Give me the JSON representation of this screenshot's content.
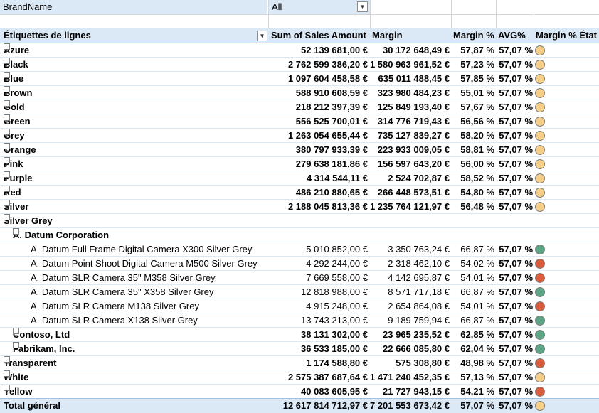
{
  "filter": {
    "field": "BrandName",
    "value": "All"
  },
  "header": {
    "row_labels": "Étiquettes de lignes",
    "sales": "Sum of Sales Amount",
    "margin": "Margin",
    "margin_pct": "Margin %",
    "avg": "AVG%",
    "state": "Margin % État"
  },
  "colors": {
    "yellow": "#f5cf87",
    "green": "#5ea585",
    "red": "#d95c3c",
    "header_bg": "#dbe8f6"
  },
  "rows": [
    {
      "label": "Azure",
      "level": 0,
      "expander": "+",
      "sales": "52 139 681,00 €",
      "margin": "30 172 648,49 €",
      "pct": "57,87 %",
      "avg": "57,07 %",
      "state": "yellow"
    },
    {
      "label": "Black",
      "level": 0,
      "expander": "+",
      "sales": "2 762 599 386,20 €",
      "margin": "1 580 963 961,52 €",
      "pct": "57,23 %",
      "avg": "57,07 %",
      "state": "yellow"
    },
    {
      "label": "Blue",
      "level": 0,
      "expander": "+",
      "sales": "1 097 604 458,58 €",
      "margin": "635 011 488,45 €",
      "pct": "57,85 %",
      "avg": "57,07 %",
      "state": "yellow"
    },
    {
      "label": "Brown",
      "level": 0,
      "expander": "+",
      "sales": "588 910 608,59 €",
      "margin": "323 980 484,23 €",
      "pct": "55,01 %",
      "avg": "57,07 %",
      "state": "yellow"
    },
    {
      "label": "Gold",
      "level": 0,
      "expander": "+",
      "sales": "218 212 397,39 €",
      "margin": "125 849 193,40 €",
      "pct": "57,67 %",
      "avg": "57,07 %",
      "state": "yellow"
    },
    {
      "label": "Green",
      "level": 0,
      "expander": "+",
      "sales": "556 525 700,01 €",
      "margin": "314 776 719,43 €",
      "pct": "56,56 %",
      "avg": "57,07 %",
      "state": "yellow"
    },
    {
      "label": "Grey",
      "level": 0,
      "expander": "+",
      "sales": "1 263 054 655,44 €",
      "margin": "735 127 839,27 €",
      "pct": "58,20 %",
      "avg": "57,07 %",
      "state": "yellow"
    },
    {
      "label": "Orange",
      "level": 0,
      "expander": "+",
      "sales": "380 797 933,39 €",
      "margin": "223 933 009,05 €",
      "pct": "58,81 %",
      "avg": "57,07 %",
      "state": "yellow"
    },
    {
      "label": "Pink",
      "level": 0,
      "expander": "+",
      "sales": "279 638 181,86 €",
      "margin": "156 597 643,20 €",
      "pct": "56,00 %",
      "avg": "57,07 %",
      "state": "yellow"
    },
    {
      "label": "Purple",
      "level": 0,
      "expander": "+",
      "sales": "4 314 544,11 €",
      "margin": "2 524 702,87 €",
      "pct": "58,52 %",
      "avg": "57,07 %",
      "state": "yellow"
    },
    {
      "label": "Red",
      "level": 0,
      "expander": "+",
      "sales": "486 210 880,65 €",
      "margin": "266 448 573,51 €",
      "pct": "54,80 %",
      "avg": "57,07 %",
      "state": "yellow"
    },
    {
      "label": "Silver",
      "level": 0,
      "expander": "+",
      "sales": "2 188 045 813,36 €",
      "margin": "1 235 764 121,97 €",
      "pct": "56,48 %",
      "avg": "57,07 %",
      "state": "yellow"
    },
    {
      "label": "Silver Grey",
      "level": 0,
      "expander": "−",
      "sales": "",
      "margin": "",
      "pct": "",
      "avg": "",
      "state": ""
    },
    {
      "label": "A. Datum Corporation",
      "level": 1,
      "expander": "−",
      "sales": "",
      "margin": "",
      "pct": "",
      "avg": "",
      "state": ""
    },
    {
      "label": "A. Datum Full Frame Digital Camera X300 Silver Grey",
      "level": 2,
      "expander": "",
      "sales": "5 010 852,00 €",
      "margin": "3 350 763,24 €",
      "pct": "66,87 %",
      "avg": "57,07 %",
      "state": "green"
    },
    {
      "label": "A. Datum Point Shoot Digital Camera M500 Silver Grey",
      "level": 2,
      "expander": "",
      "sales": "4 292 244,00 €",
      "margin": "2 318 462,10 €",
      "pct": "54,02 %",
      "avg": "57,07 %",
      "state": "red"
    },
    {
      "label": "A. Datum SLR Camera 35\" M358 Silver Grey",
      "level": 2,
      "expander": "",
      "sales": "7 669 558,00 €",
      "margin": "4 142 695,87 €",
      "pct": "54,01 %",
      "avg": "57,07 %",
      "state": "red"
    },
    {
      "label": "A. Datum SLR Camera 35\" X358 Silver Grey",
      "level": 2,
      "expander": "",
      "sales": "12 818 988,00 €",
      "margin": "8 571 717,18 €",
      "pct": "66,87 %",
      "avg": "57,07 %",
      "state": "green"
    },
    {
      "label": "A. Datum SLR Camera M138 Silver Grey",
      "level": 2,
      "expander": "",
      "sales": "4 915 248,00 €",
      "margin": "2 654 864,08 €",
      "pct": "54,01 %",
      "avg": "57,07 %",
      "state": "red"
    },
    {
      "label": "A. Datum SLR Camera X138 Silver Grey",
      "level": 2,
      "expander": "",
      "sales": "13 743 213,00 €",
      "margin": "9 189 759,94 €",
      "pct": "66,87 %",
      "avg": "57,07 %",
      "state": "green"
    },
    {
      "label": "Contoso, Ltd",
      "level": 1,
      "expander": "+",
      "sales": "38 131 302,00 €",
      "margin": "23 965 235,52 €",
      "pct": "62,85 %",
      "avg": "57,07 %",
      "state": "green"
    },
    {
      "label": "Fabrikam, Inc.",
      "level": 1,
      "expander": "+",
      "sales": "36 533 185,00 €",
      "margin": "22 666 085,80 €",
      "pct": "62,04 %",
      "avg": "57,07 %",
      "state": "green"
    },
    {
      "label": "Transparent",
      "level": 0,
      "expander": "+",
      "sales": "1 174 588,80 €",
      "margin": "575 308,80 €",
      "pct": "48,98 %",
      "avg": "57,07 %",
      "state": "red"
    },
    {
      "label": "White",
      "level": 0,
      "expander": "+",
      "sales": "2 575 387 687,64 €",
      "margin": "1 471 240 452,35 €",
      "pct": "57,13 %",
      "avg": "57,07 %",
      "state": "yellow"
    },
    {
      "label": "Yellow",
      "level": 0,
      "expander": "+",
      "sales": "40 083 605,95 €",
      "margin": "21 727 943,15 €",
      "pct": "54,21 %",
      "avg": "57,07 %",
      "state": "red"
    }
  ],
  "total": {
    "label": "Total général",
    "sales": "12 617 814 712,97 €",
    "margin": "7 201 553 673,42 €",
    "pct": "57,07 %",
    "avg": "57,07 %",
    "state": "yellow"
  }
}
